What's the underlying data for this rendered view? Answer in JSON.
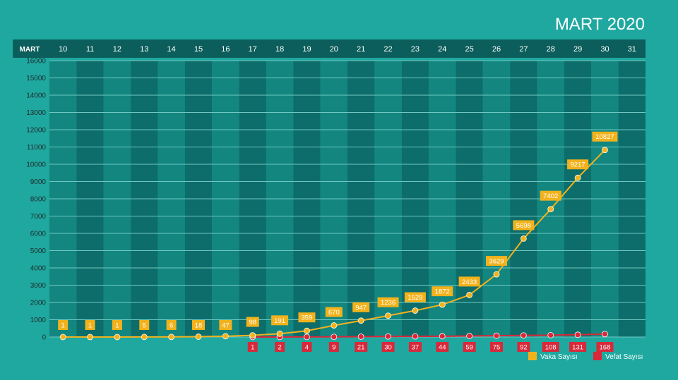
{
  "chart_data": {
    "type": "line",
    "title": "MART 2020",
    "x_axis_header": "MART",
    "categories": [
      "10",
      "11",
      "12",
      "13",
      "14",
      "15",
      "16",
      "17",
      "18",
      "19",
      "20",
      "21",
      "22",
      "23",
      "24",
      "25",
      "26",
      "27",
      "28",
      "29",
      "30",
      "31"
    ],
    "y_ticks": [
      0,
      1000,
      2000,
      3000,
      4000,
      5000,
      6000,
      7000,
      8000,
      9000,
      10000,
      11000,
      12000,
      13000,
      14000,
      15000,
      16000
    ],
    "ylim": [
      0,
      16000
    ],
    "grid": true,
    "legend_position": "bottom-right",
    "series": [
      {
        "name": "Vaka Sayısı",
        "color": "#f2b21c",
        "values": [
          1,
          1,
          1,
          5,
          6,
          18,
          47,
          98,
          191,
          359,
          670,
          947,
          1236,
          1529,
          1872,
          2433,
          3629,
          5698,
          7402,
          9217,
          10827,
          null
        ]
      },
      {
        "name": "Vefat Sayısı",
        "color": "#d8283a",
        "values": [
          null,
          null,
          null,
          null,
          null,
          null,
          null,
          1,
          2,
          4,
          9,
          21,
          30,
          37,
          44,
          59,
          75,
          92,
          108,
          131,
          168,
          null
        ]
      }
    ]
  },
  "colors": {
    "background": "#1fa8a0",
    "band_dark": "#0d6d6a",
    "band_light": "#138680",
    "header": "#0b5e5b",
    "grid": "#6fc9c2"
  }
}
